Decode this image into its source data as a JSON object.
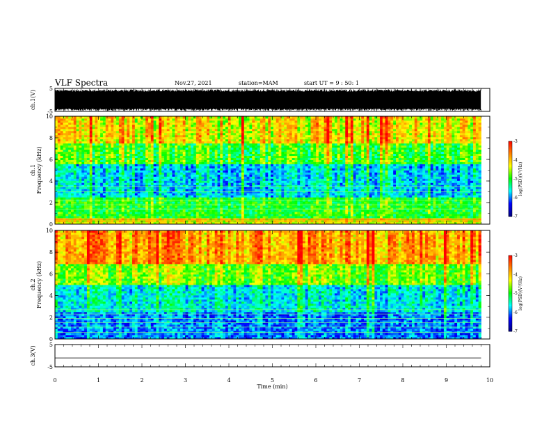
{
  "header": {
    "title": "VLF Spectra",
    "date": "Nov.27, 2021",
    "station": "station=MAM",
    "start": "start UT =  9 : 50: 1"
  },
  "colors": {
    "spectrogram_scale": [
      "#000080",
      "#0000ff",
      "#00ffff",
      "#00ff00",
      "#ffff00",
      "#ff8000",
      "#ff0000"
    ],
    "waveform": "#000000"
  },
  "chart_data": [
    {
      "type": "line",
      "ylabel": "ch.1(V)",
      "ylim": [
        -5,
        5
      ],
      "yticks": [
        "5",
        "-5"
      ],
      "description_values": {
        "x": [
          0,
          9.8
        ],
        "y_envelope": [
          -4.5,
          4.5
        ]
      }
    },
    {
      "type": "heatmap",
      "ylabel_prefix": "ch.1",
      "ylabel": "Frequency (kHz)",
      "ylim": [
        0,
        10
      ],
      "yticks": [
        "0",
        "2",
        "4",
        "6",
        "8",
        "10"
      ],
      "xlim": [
        0,
        10
      ],
      "data_extent_x": [
        0,
        9.8
      ],
      "colorbar": {
        "label": "log(PSD)(V²/Hz)",
        "range": [
          -7,
          -3
        ],
        "ticks": [
          "-3",
          "-4",
          "-5",
          "-6",
          "-7"
        ]
      },
      "band_levels": [
        {
          "f": [
            0,
            0.5
          ],
          "level": -4.4
        },
        {
          "f": [
            0.5,
            2.5
          ],
          "level": -5.0
        },
        {
          "f": [
            2.5,
            5.5
          ],
          "level": -5.7
        },
        {
          "f": [
            5.5,
            7.5
          ],
          "level": -4.9
        },
        {
          "f": [
            7.5,
            10
          ],
          "level": -4.2
        }
      ]
    },
    {
      "type": "heatmap",
      "ylabel_prefix": "ch.2",
      "ylabel": "Frequency (kHz)",
      "ylim": [
        0,
        10
      ],
      "yticks": [
        "0",
        "2",
        "4",
        "6",
        "8",
        "10"
      ],
      "xlim": [
        0,
        10
      ],
      "data_extent_x": [
        0,
        9.8
      ],
      "colorbar": {
        "label": "log(PSD)(V²/Hz)",
        "range": [
          -7,
          -3
        ],
        "ticks": [
          "-3",
          "-4",
          "-5",
          "-6",
          "-7"
        ]
      },
      "band_levels": [
        {
          "f": [
            0,
            2.5
          ],
          "level": -6.0
        },
        {
          "f": [
            2.5,
            5.0
          ],
          "level": -5.6
        },
        {
          "f": [
            5.0,
            7.0
          ],
          "level": -4.7
        },
        {
          "f": [
            7.0,
            10
          ],
          "level": -3.8
        }
      ]
    },
    {
      "type": "line",
      "ylabel": "ch.3(V)",
      "ylim": [
        -5,
        5
      ],
      "yticks": [
        "5",
        "-5"
      ],
      "xlabel": "Time (min)",
      "xticks": [
        "0",
        "1",
        "2",
        "3",
        "4",
        "5",
        "6",
        "7",
        "8",
        "9",
        "10"
      ],
      "x": [
        0,
        9.8
      ],
      "y": [
        -1,
        -1
      ]
    }
  ]
}
